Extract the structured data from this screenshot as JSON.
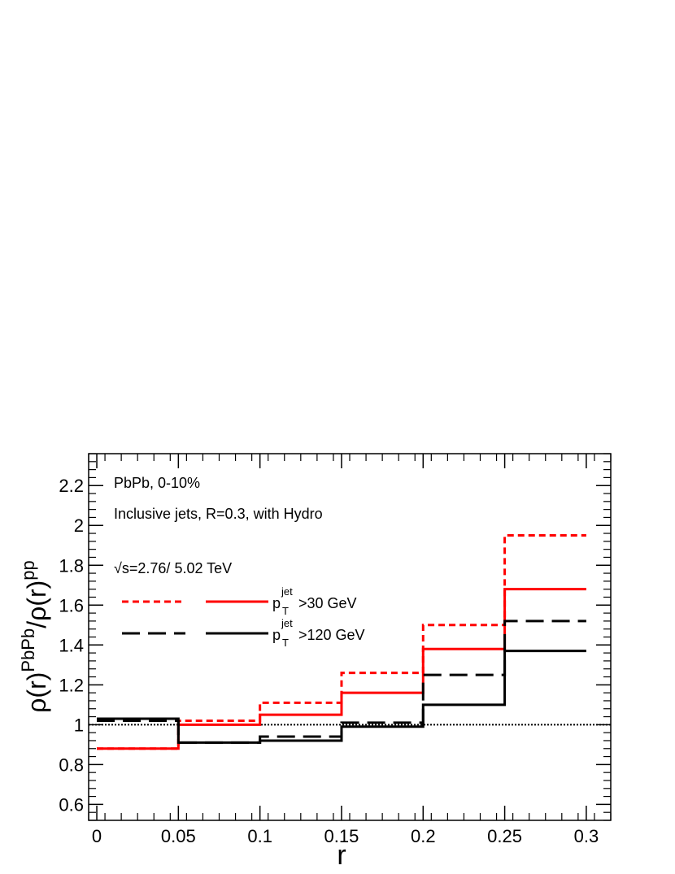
{
  "chart_data": {
    "type": "line",
    "xlabel": "r",
    "ylabel": "ρ(r)PbPb/ρ(r)pp",
    "xlim": [
      -0.005,
      0.315
    ],
    "ylim": [
      0.52,
      2.36
    ],
    "x_ticks": [
      "0",
      "0.05",
      "0.1",
      "0.15",
      "0.2",
      "0.25",
      "0.3"
    ],
    "y_ticks": [
      "0.6",
      "0.8",
      "1",
      "1.2",
      "1.4",
      "1.6",
      "1.8",
      "2",
      "2.2"
    ],
    "bin_edges": [
      0,
      0.05,
      0.1,
      0.15,
      0.2,
      0.25,
      0.3
    ],
    "reference_line": 1.0,
    "annotations": {
      "system": "PbPb, 0-10%",
      "jets": "Inclusive jets, R=0.3, with Hydro",
      "energy_sqrt": "√",
      "energy_rest": "s=2.76/  5.02 TeV"
    },
    "legend": [
      {
        "label_main": "p",
        "label_sup": "jet",
        "label_sub": "T",
        "label_rest": ">30 GeV"
      },
      {
        "label_main": "p",
        "label_sup": "jet",
        "label_sub": "T",
        "label_rest": ">120 GeV"
      }
    ],
    "series": [
      {
        "color": "#ff0000",
        "style": "dotted",
        "values": [
          0.88,
          1.02,
          1.11,
          1.26,
          1.5,
          1.95
        ]
      },
      {
        "color": "#ff0000",
        "style": "solid",
        "values": [
          0.88,
          1.0,
          1.05,
          1.16,
          1.38,
          1.68
        ]
      },
      {
        "color": "#000000",
        "style": "dashed",
        "values": [
          1.02,
          0.91,
          0.94,
          1.01,
          1.25,
          1.52
        ]
      },
      {
        "color": "#000000",
        "style": "solid",
        "values": [
          1.03,
          0.91,
          0.92,
          0.99,
          1.1,
          1.37
        ]
      }
    ]
  }
}
